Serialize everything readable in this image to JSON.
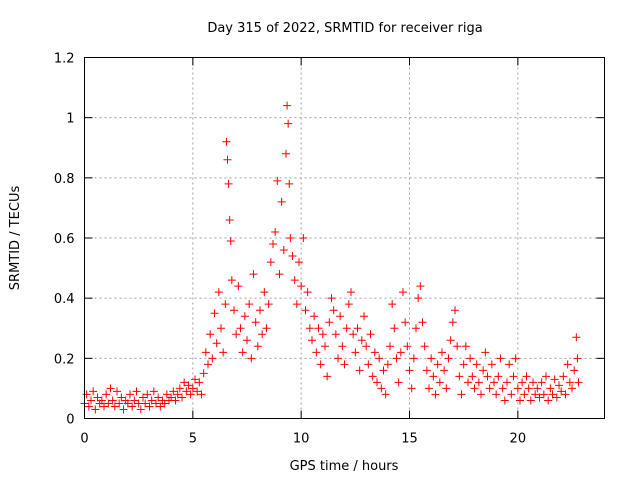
{
  "chart_data": {
    "type": "scatter",
    "title": "Day 315 of 2022, SRMTID for receiver riga",
    "xlabel": "GPS time / hours",
    "ylabel": "SRMTID / TECUs",
    "xlim": [
      0,
      24
    ],
    "ylim": [
      0,
      1.2
    ],
    "xticks": [
      0,
      5,
      10,
      15,
      20
    ],
    "xtick_labels": [
      "0",
      "5",
      "10",
      "15",
      "20"
    ],
    "yticks": [
      0,
      0.2,
      0.4,
      0.6,
      0.8,
      1,
      1.2
    ],
    "ytick_labels": [
      "0",
      "0.2",
      "0.4",
      "0.6",
      "0.8",
      "1",
      "1.2"
    ],
    "grid": true,
    "marker": "+",
    "color": "#ff0000",
    "series": [
      {
        "name": "SRMTID",
        "points": [
          [
            0.0,
            0.05
          ],
          [
            0.1,
            0.08
          ],
          [
            0.2,
            0.04
          ],
          [
            0.3,
            0.06
          ],
          [
            0.4,
            0.09
          ],
          [
            0.5,
            0.03
          ],
          [
            0.6,
            0.07
          ],
          [
            0.7,
            0.05
          ],
          [
            0.8,
            0.06
          ],
          [
            0.9,
            0.04
          ],
          [
            1.0,
            0.08
          ],
          [
            1.1,
            0.05
          ],
          [
            1.2,
            0.1
          ],
          [
            1.3,
            0.06
          ],
          [
            1.4,
            0.04
          ],
          [
            1.5,
            0.09
          ],
          [
            1.6,
            0.05
          ],
          [
            1.7,
            0.07
          ],
          [
            1.8,
            0.03
          ],
          [
            1.9,
            0.06
          ],
          [
            2.0,
            0.05
          ],
          [
            2.1,
            0.08
          ],
          [
            2.2,
            0.04
          ],
          [
            2.3,
            0.06
          ],
          [
            2.4,
            0.09
          ],
          [
            2.5,
            0.05
          ],
          [
            2.6,
            0.03
          ],
          [
            2.7,
            0.07
          ],
          [
            2.8,
            0.05
          ],
          [
            2.9,
            0.08
          ],
          [
            3.0,
            0.04
          ],
          [
            3.1,
            0.06
          ],
          [
            3.2,
            0.09
          ],
          [
            3.3,
            0.05
          ],
          [
            3.4,
            0.07
          ],
          [
            3.5,
            0.04
          ],
          [
            3.6,
            0.06
          ],
          [
            3.7,
            0.05
          ],
          [
            3.8,
            0.08
          ],
          [
            3.9,
            0.06
          ],
          [
            4.0,
            0.07
          ],
          [
            4.1,
            0.09
          ],
          [
            4.2,
            0.06
          ],
          [
            4.3,
            0.08
          ],
          [
            4.4,
            0.1
          ],
          [
            4.5,
            0.07
          ],
          [
            4.6,
            0.12
          ],
          [
            4.7,
            0.09
          ],
          [
            4.8,
            0.11
          ],
          [
            4.9,
            0.08
          ],
          [
            5.0,
            0.1
          ],
          [
            5.1,
            0.13
          ],
          [
            5.2,
            0.09
          ],
          [
            5.3,
            0.12
          ],
          [
            5.4,
            0.08
          ],
          [
            5.5,
            0.15
          ],
          [
            5.6,
            0.22
          ],
          [
            5.7,
            0.18
          ],
          [
            5.8,
            0.28
          ],
          [
            5.9,
            0.2
          ],
          [
            6.0,
            0.35
          ],
          [
            6.1,
            0.25
          ],
          [
            6.2,
            0.42
          ],
          [
            6.3,
            0.3
          ],
          [
            6.4,
            0.22
          ],
          [
            6.5,
            0.38
          ],
          [
            6.55,
            0.92
          ],
          [
            6.6,
            0.86
          ],
          [
            6.65,
            0.78
          ],
          [
            6.7,
            0.66
          ],
          [
            6.75,
            0.59
          ],
          [
            6.8,
            0.46
          ],
          [
            6.9,
            0.36
          ],
          [
            7.0,
            0.28
          ],
          [
            7.1,
            0.44
          ],
          [
            7.2,
            0.3
          ],
          [
            7.3,
            0.22
          ],
          [
            7.4,
            0.34
          ],
          [
            7.5,
            0.26
          ],
          [
            7.6,
            0.38
          ],
          [
            7.7,
            0.2
          ],
          [
            7.8,
            0.48
          ],
          [
            7.9,
            0.32
          ],
          [
            8.0,
            0.24
          ],
          [
            8.1,
            0.36
          ],
          [
            8.2,
            0.28
          ],
          [
            8.3,
            0.42
          ],
          [
            8.4,
            0.3
          ],
          [
            8.5,
            0.38
          ],
          [
            8.6,
            0.52
          ],
          [
            8.7,
            0.58
          ],
          [
            8.8,
            0.62
          ],
          [
            8.9,
            0.79
          ],
          [
            9.0,
            0.48
          ],
          [
            9.1,
            0.72
          ],
          [
            9.2,
            0.56
          ],
          [
            9.3,
            0.88
          ],
          [
            9.35,
            1.04
          ],
          [
            9.4,
            0.98
          ],
          [
            9.45,
            0.78
          ],
          [
            9.5,
            0.6
          ],
          [
            9.6,
            0.54
          ],
          [
            9.7,
            0.46
          ],
          [
            9.8,
            0.38
          ],
          [
            9.9,
            0.52
          ],
          [
            10.0,
            0.44
          ],
          [
            10.1,
            0.6
          ],
          [
            10.2,
            0.36
          ],
          [
            10.3,
            0.42
          ],
          [
            10.4,
            0.3
          ],
          [
            10.5,
            0.26
          ],
          [
            10.6,
            0.34
          ],
          [
            10.7,
            0.22
          ],
          [
            10.8,
            0.3
          ],
          [
            10.9,
            0.18
          ],
          [
            11.0,
            0.28
          ],
          [
            11.1,
            0.24
          ],
          [
            11.2,
            0.14
          ],
          [
            11.3,
            0.32
          ],
          [
            11.4,
            0.4
          ],
          [
            11.5,
            0.36
          ],
          [
            11.6,
            0.28
          ],
          [
            11.7,
            0.2
          ],
          [
            11.8,
            0.34
          ],
          [
            11.9,
            0.24
          ],
          [
            12.0,
            0.18
          ],
          [
            12.1,
            0.3
          ],
          [
            12.2,
            0.38
          ],
          [
            12.3,
            0.42
          ],
          [
            12.4,
            0.28
          ],
          [
            12.5,
            0.22
          ],
          [
            12.6,
            0.3
          ],
          [
            12.7,
            0.16
          ],
          [
            12.8,
            0.26
          ],
          [
            12.9,
            0.34
          ],
          [
            13.0,
            0.24
          ],
          [
            13.1,
            0.18
          ],
          [
            13.2,
            0.28
          ],
          [
            13.3,
            0.14
          ],
          [
            13.4,
            0.22
          ],
          [
            13.5,
            0.12
          ],
          [
            13.6,
            0.2
          ],
          [
            13.7,
            0.1
          ],
          [
            13.8,
            0.16
          ],
          [
            13.9,
            0.08
          ],
          [
            14.0,
            0.18
          ],
          [
            14.1,
            0.24
          ],
          [
            14.2,
            0.38
          ],
          [
            14.3,
            0.3
          ],
          [
            14.4,
            0.2
          ],
          [
            14.5,
            0.12
          ],
          [
            14.6,
            0.22
          ],
          [
            14.7,
            0.42
          ],
          [
            14.8,
            0.32
          ],
          [
            14.9,
            0.24
          ],
          [
            15.0,
            0.16
          ],
          [
            15.1,
            0.1
          ],
          [
            15.2,
            0.2
          ],
          [
            15.3,
            0.3
          ],
          [
            15.4,
            0.4
          ],
          [
            15.5,
            0.44
          ],
          [
            15.6,
            0.32
          ],
          [
            15.7,
            0.24
          ],
          [
            15.8,
            0.16
          ],
          [
            15.9,
            0.1
          ],
          [
            16.0,
            0.2
          ],
          [
            16.1,
            0.14
          ],
          [
            16.2,
            0.08
          ],
          [
            16.3,
            0.18
          ],
          [
            16.4,
            0.12
          ],
          [
            16.5,
            0.22
          ],
          [
            16.6,
            0.16
          ],
          [
            16.7,
            0.1
          ],
          [
            16.8,
            0.2
          ],
          [
            16.9,
            0.26
          ],
          [
            17.0,
            0.32
          ],
          [
            17.1,
            0.36
          ],
          [
            17.2,
            0.24
          ],
          [
            17.3,
            0.14
          ],
          [
            17.4,
            0.08
          ],
          [
            17.5,
            0.18
          ],
          [
            17.6,
            0.24
          ],
          [
            17.7,
            0.12
          ],
          [
            17.8,
            0.2
          ],
          [
            17.9,
            0.14
          ],
          [
            18.0,
            0.1
          ],
          [
            18.1,
            0.18
          ],
          [
            18.2,
            0.12
          ],
          [
            18.3,
            0.08
          ],
          [
            18.4,
            0.16
          ],
          [
            18.5,
            0.22
          ],
          [
            18.6,
            0.14
          ],
          [
            18.7,
            0.1
          ],
          [
            18.8,
            0.18
          ],
          [
            18.9,
            0.12
          ],
          [
            19.0,
            0.08
          ],
          [
            19.1,
            0.14
          ],
          [
            19.2,
            0.2
          ],
          [
            19.3,
            0.1
          ],
          [
            19.4,
            0.06
          ],
          [
            19.5,
            0.12
          ],
          [
            19.6,
            0.18
          ],
          [
            19.7,
            0.08
          ],
          [
            19.8,
            0.14
          ],
          [
            19.9,
            0.2
          ],
          [
            20.0,
            0.1
          ],
          [
            20.1,
            0.06
          ],
          [
            20.2,
            0.12
          ],
          [
            20.3,
            0.08
          ],
          [
            20.4,
            0.14
          ],
          [
            20.5,
            0.1
          ],
          [
            20.6,
            0.06
          ],
          [
            20.7,
            0.12
          ],
          [
            20.8,
            0.08
          ],
          [
            20.9,
            0.1
          ],
          [
            21.0,
            0.07
          ],
          [
            21.1,
            0.12
          ],
          [
            21.2,
            0.08
          ],
          [
            21.3,
            0.14
          ],
          [
            21.4,
            0.06
          ],
          [
            21.5,
            0.1
          ],
          [
            21.6,
            0.08
          ],
          [
            21.7,
            0.13
          ],
          [
            21.8,
            0.07
          ],
          [
            21.9,
            0.11
          ],
          [
            22.0,
            0.09
          ],
          [
            22.1,
            0.14
          ],
          [
            22.2,
            0.08
          ],
          [
            22.3,
            0.18
          ],
          [
            22.4,
            0.12
          ],
          [
            22.5,
            0.1
          ],
          [
            22.6,
            0.16
          ],
          [
            22.7,
            0.27
          ],
          [
            22.75,
            0.2
          ],
          [
            22.8,
            0.12
          ]
        ]
      }
    ]
  }
}
